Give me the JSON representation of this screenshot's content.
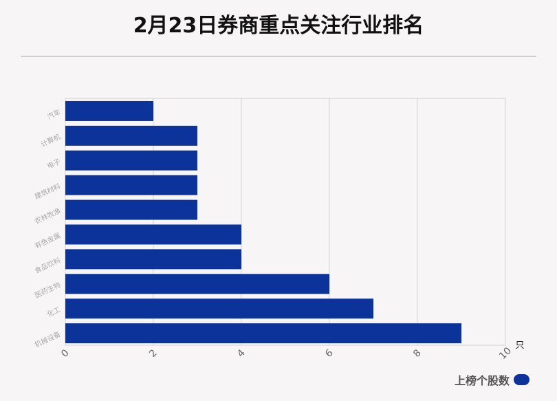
{
  "chart_data": {
    "type": "bar",
    "orientation": "horizontal",
    "title": "2月23日券商重点关注行业排名",
    "categories": [
      "汽车",
      "计算机",
      "电子",
      "建筑材料",
      "农林牧渔",
      "有色金属",
      "食品饮料",
      "医药生物",
      "化工",
      "机械设备"
    ],
    "series": [
      {
        "name": "上榜个股数",
        "values": [
          2,
          3,
          3,
          3,
          3,
          4,
          4,
          6,
          7,
          9
        ],
        "color": "#0c3399"
      }
    ],
    "x_ticks": [
      "0",
      "2",
      "4",
      "6",
      "8",
      "10"
    ],
    "xlim": [
      0,
      10
    ],
    "xlabel": "只",
    "grid": true,
    "legend_position": "bottom-right"
  }
}
